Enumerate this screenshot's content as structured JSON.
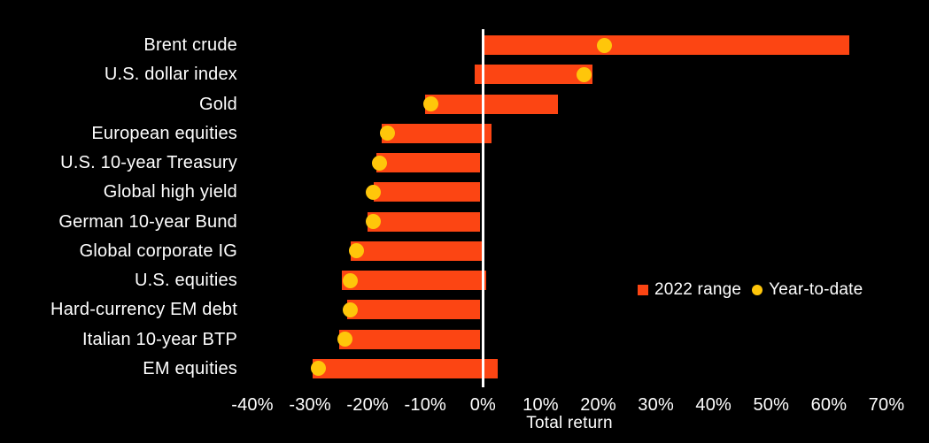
{
  "chart_data": {
    "type": "bar",
    "variant": "horizontal-range-bars-with-point-markers",
    "title": "",
    "xlabel": "Total return",
    "ylabel": "",
    "xlim": [
      -40,
      70
    ],
    "grid": false,
    "background": "#000000",
    "text_color": "#ffffff",
    "legend_position": "middle-right",
    "x_ticks": [
      {
        "v": -40,
        "label": "-40%"
      },
      {
        "v": -30,
        "label": "-30%"
      },
      {
        "v": -20,
        "label": "-20%"
      },
      {
        "v": -10,
        "label": "-10%"
      },
      {
        "v": 0,
        "label": "0%"
      },
      {
        "v": 10,
        "label": "10%"
      },
      {
        "v": 20,
        "label": "20%"
      },
      {
        "v": 30,
        "label": "30%"
      },
      {
        "v": 40,
        "label": "40%"
      },
      {
        "v": 50,
        "label": "50%"
      },
      {
        "v": 60,
        "label": "60%"
      },
      {
        "v": 70,
        "label": "70%"
      }
    ],
    "categories": [
      "Brent crude",
      "U.S. dollar index",
      "Gold",
      "European equities",
      "U.S. 10-year Treasury",
      "Global high yield",
      "German 10-year Bund",
      "Global corporate IG",
      "U.S. equities",
      "Hard-currency EM debt",
      "Italian 10-year BTP",
      "EM equities"
    ],
    "series": [
      {
        "name": "2022 range",
        "type": "range",
        "color": "#fc4513",
        "low": [
          0,
          -1.5,
          -10,
          -17.5,
          -18.5,
          -19,
          -20,
          -23,
          -24.5,
          -23.5,
          -25,
          -29.5
        ],
        "high": [
          63.5,
          19,
          13,
          1.5,
          -0.5,
          -0.5,
          -0.5,
          0,
          0.5,
          -0.5,
          -0.5,
          2.5
        ]
      },
      {
        "name": "Year-to-date",
        "type": "point",
        "color": "#ffc60a",
        "values": [
          21,
          17.5,
          -9,
          -16.5,
          -18,
          -19,
          -19,
          -22,
          -23,
          -23,
          -24,
          -28.5
        ]
      }
    ],
    "zero_line": {
      "color": "#ffffff"
    }
  }
}
